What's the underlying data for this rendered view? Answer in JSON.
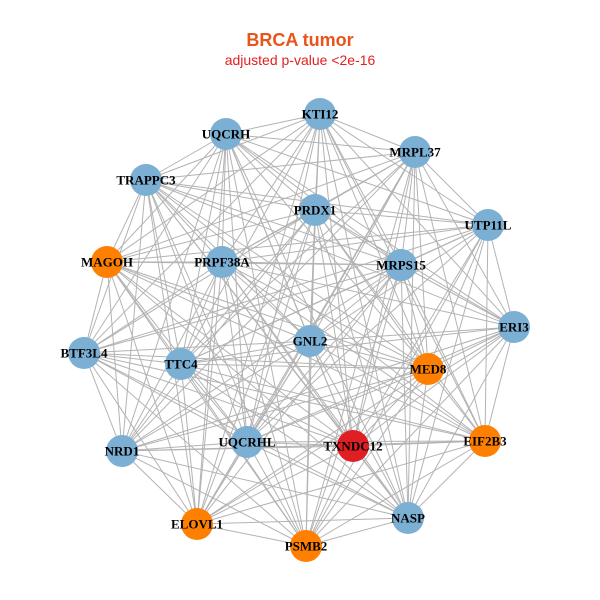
{
  "title": "BRCA tumor",
  "subtitle": "adjusted p-value <2e-16",
  "colors": {
    "blue": "#7BAFD4",
    "orange": "#FF8000",
    "red": "#E01F24",
    "edge": "#B3B3B3"
  },
  "nodes": [
    {
      "id": "KTI12",
      "color": "blue"
    },
    {
      "id": "UQCRH",
      "color": "blue"
    },
    {
      "id": "MRPL37",
      "color": "blue"
    },
    {
      "id": "TRAPPC3",
      "color": "blue"
    },
    {
      "id": "PRDX1",
      "color": "blue"
    },
    {
      "id": "UTP11L",
      "color": "blue"
    },
    {
      "id": "MAGOH",
      "color": "orange"
    },
    {
      "id": "PRPF38A",
      "color": "blue"
    },
    {
      "id": "MRPS15",
      "color": "blue"
    },
    {
      "id": "ERI3",
      "color": "blue"
    },
    {
      "id": "GNL2",
      "color": "blue"
    },
    {
      "id": "BTF3L4",
      "color": "blue"
    },
    {
      "id": "TTC4",
      "color": "blue"
    },
    {
      "id": "MED8",
      "color": "orange"
    },
    {
      "id": "NRD1",
      "color": "blue"
    },
    {
      "id": "UQCRHL",
      "color": "blue"
    },
    {
      "id": "TXNDC12",
      "color": "red"
    },
    {
      "id": "EIF2B3",
      "color": "orange"
    },
    {
      "id": "NASP",
      "color": "blue"
    },
    {
      "id": "ELOVL1",
      "color": "orange"
    },
    {
      "id": "PSMB2",
      "color": "orange"
    }
  ]
}
